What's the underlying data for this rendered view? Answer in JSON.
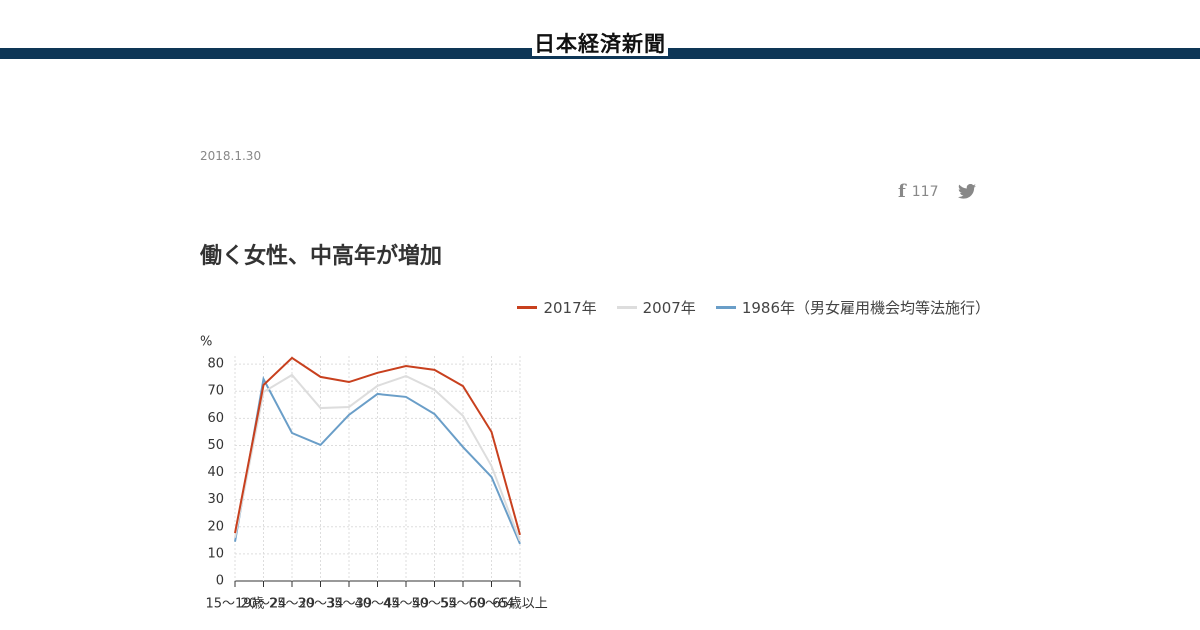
{
  "header": {
    "logo": "日本経済新聞"
  },
  "article": {
    "date": "2018.1.30",
    "share_count": "117",
    "title": "働く女性、中高年が増加"
  },
  "chart_data": {
    "type": "line",
    "y_label": "%",
    "categories": [
      "15〜19歳",
      "20〜24",
      "25〜29",
      "30〜34",
      "35〜39",
      "40〜44",
      "45〜49",
      "50〜54",
      "55〜59",
      "60〜64",
      "65歳以上"
    ],
    "series": [
      {
        "name": "2017年",
        "color": "#c8401e",
        "values": [
          17.7,
          72.3,
          82.3,
          75.3,
          73.4,
          76.8,
          79.3,
          77.9,
          71.9,
          55.0,
          17.0
        ]
      },
      {
        "name": "2007年",
        "color": "#dddddd",
        "values": [
          16.0,
          69.7,
          76.0,
          63.8,
          64.2,
          72.0,
          75.6,
          70.5,
          60.9,
          42.4,
          14.8
        ]
      },
      {
        "name": "1986年（男女雇用機会均等法施行）",
        "color": "#6a9ec8",
        "values": [
          14.5,
          74.5,
          54.6,
          50.2,
          61.3,
          69.0,
          67.9,
          61.6,
          49.4,
          38.4,
          13.7
        ]
      }
    ],
    "ylim": [
      0,
      83
    ],
    "yticks": [
      0,
      10,
      20,
      30,
      40,
      50,
      60,
      70,
      80
    ],
    "grid": true,
    "legend": "top-right"
  }
}
